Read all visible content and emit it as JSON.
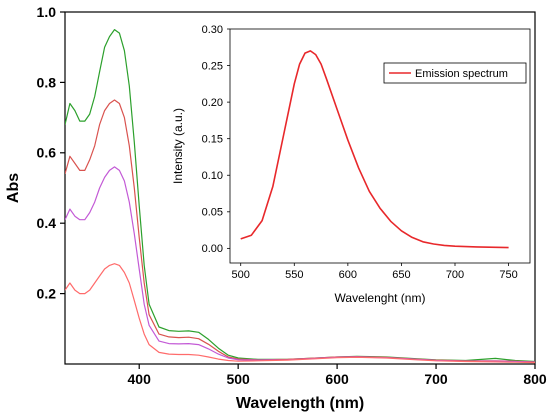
{
  "chart_data": [
    {
      "type": "line",
      "xlabel": "Wavelength (nm)",
      "ylabel": "Abs",
      "xlim": [
        325,
        800
      ],
      "ylim": [
        0,
        1.0
      ],
      "x_ticks": [
        400,
        500,
        600,
        700,
        800
      ],
      "y_ticks": [
        0.2,
        0.4,
        0.6,
        0.8,
        1.0
      ],
      "grid": false,
      "series": [
        {
          "color": "#2ca02c",
          "x": [
            325,
            330,
            335,
            340,
            345,
            350,
            355,
            360,
            365,
            370,
            375,
            380,
            385,
            390,
            395,
            400,
            405,
            410,
            420,
            430,
            440,
            450,
            460,
            470,
            480,
            490,
            500,
            520,
            550,
            580,
            600,
            620,
            650,
            680,
            700,
            730,
            760,
            780,
            800
          ],
          "y": [
            0.68,
            0.74,
            0.72,
            0.69,
            0.69,
            0.71,
            0.76,
            0.83,
            0.9,
            0.93,
            0.95,
            0.94,
            0.89,
            0.79,
            0.63,
            0.45,
            0.28,
            0.17,
            0.105,
            0.095,
            0.093,
            0.094,
            0.09,
            0.07,
            0.045,
            0.025,
            0.017,
            0.013,
            0.013,
            0.017,
            0.02,
            0.022,
            0.02,
            0.015,
            0.012,
            0.01,
            0.016,
            0.01,
            0.007
          ]
        },
        {
          "color": "#d9534f",
          "x": [
            325,
            330,
            335,
            340,
            345,
            350,
            355,
            360,
            365,
            370,
            375,
            380,
            385,
            390,
            395,
            400,
            405,
            410,
            420,
            430,
            440,
            450,
            460,
            470,
            480,
            490,
            500,
            520,
            550,
            580,
            600,
            620,
            650,
            680,
            700,
            730,
            760,
            780,
            800
          ],
          "y": [
            0.54,
            0.59,
            0.57,
            0.55,
            0.55,
            0.58,
            0.62,
            0.68,
            0.72,
            0.74,
            0.75,
            0.74,
            0.7,
            0.62,
            0.5,
            0.36,
            0.23,
            0.14,
            0.085,
            0.077,
            0.075,
            0.076,
            0.072,
            0.056,
            0.036,
            0.02,
            0.014,
            0.012,
            0.013,
            0.017,
            0.02,
            0.021,
            0.019,
            0.014,
            0.011,
            0.009,
            0.009,
            0.008,
            0.006
          ]
        },
        {
          "color": "#c35ad6",
          "x": [
            325,
            330,
            335,
            340,
            345,
            350,
            355,
            360,
            365,
            370,
            375,
            380,
            385,
            390,
            395,
            400,
            405,
            410,
            420,
            430,
            440,
            450,
            460,
            470,
            480,
            490,
            500,
            520,
            550,
            580,
            600,
            620,
            650,
            680,
            700,
            730,
            760,
            780,
            800
          ],
          "y": [
            0.41,
            0.44,
            0.42,
            0.41,
            0.41,
            0.43,
            0.46,
            0.5,
            0.53,
            0.55,
            0.56,
            0.55,
            0.52,
            0.46,
            0.37,
            0.27,
            0.17,
            0.11,
            0.065,
            0.058,
            0.057,
            0.058,
            0.055,
            0.043,
            0.028,
            0.017,
            0.012,
            0.011,
            0.012,
            0.016,
            0.019,
            0.02,
            0.018,
            0.013,
            0.01,
            0.008,
            0.008,
            0.007,
            0.005
          ]
        },
        {
          "color": "#ff6b6b",
          "x": [
            325,
            330,
            335,
            340,
            345,
            350,
            355,
            360,
            365,
            370,
            375,
            380,
            385,
            390,
            395,
            400,
            405,
            410,
            420,
            430,
            440,
            450,
            460,
            470,
            480,
            490,
            500,
            520,
            550,
            580,
            600,
            620,
            650,
            680,
            700,
            730,
            760,
            780,
            800
          ],
          "y": [
            0.21,
            0.23,
            0.21,
            0.2,
            0.2,
            0.21,
            0.23,
            0.25,
            0.27,
            0.28,
            0.285,
            0.28,
            0.26,
            0.23,
            0.18,
            0.13,
            0.085,
            0.055,
            0.033,
            0.028,
            0.027,
            0.027,
            0.025,
            0.02,
            0.014,
            0.01,
            0.008,
            0.009,
            0.011,
            0.015,
            0.018,
            0.019,
            0.017,
            0.012,
            0.009,
            0.007,
            0.006,
            0.005,
            0.004
          ]
        }
      ]
    },
    {
      "type": "line",
      "xlabel": "Wavelenght (nm)",
      "ylabel": "Intensity (a.u.)",
      "xlim": [
        490,
        770
      ],
      "ylim": [
        -0.02,
        0.3
      ],
      "x_ticks": [
        500,
        550,
        600,
        650,
        700,
        750
      ],
      "y_ticks": [
        0.0,
        0.05,
        0.1,
        0.15,
        0.2,
        0.25,
        0.3
      ],
      "grid": false,
      "legend_position": "top-right",
      "series": [
        {
          "name": "Emission spectrum",
          "color": "#e8282b",
          "x": [
            500,
            510,
            520,
            530,
            540,
            550,
            555,
            560,
            565,
            570,
            575,
            580,
            590,
            600,
            610,
            620,
            630,
            640,
            650,
            660,
            670,
            680,
            690,
            700,
            720,
            750
          ],
          "y": [
            0.013,
            0.018,
            0.038,
            0.085,
            0.155,
            0.225,
            0.252,
            0.267,
            0.27,
            0.265,
            0.252,
            0.232,
            0.19,
            0.148,
            0.11,
            0.078,
            0.055,
            0.037,
            0.024,
            0.015,
            0.009,
            0.006,
            0.004,
            0.003,
            0.002,
            0.001
          ]
        }
      ]
    }
  ]
}
